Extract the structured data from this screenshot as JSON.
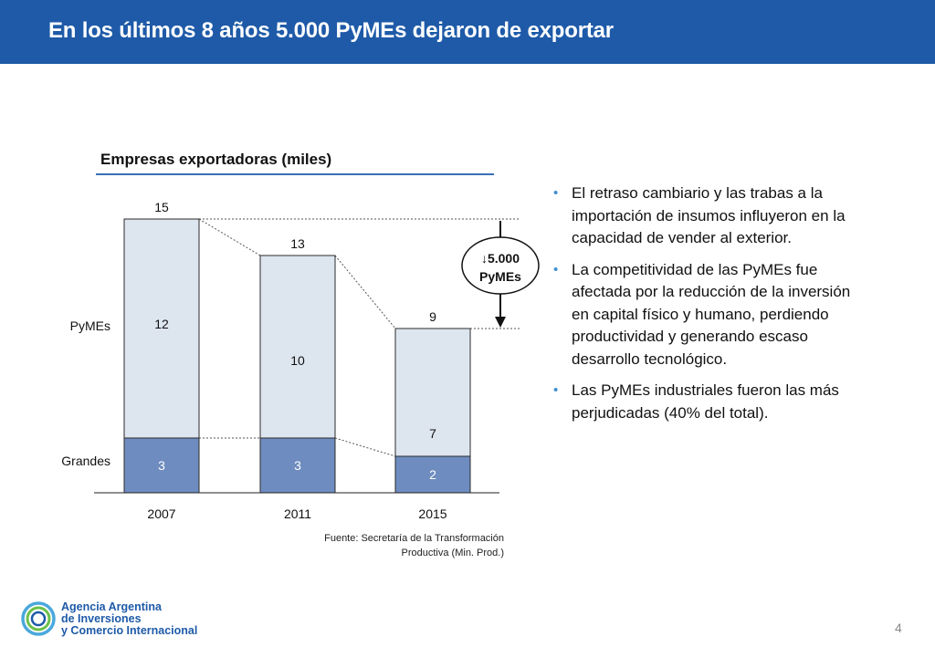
{
  "header": {
    "title": "En los últimos 8 años 5.000 PyMEs dejaron de exportar"
  },
  "chart_data": {
    "type": "bar",
    "stacked": true,
    "title": "Empresas exportadoras (miles)",
    "categories": [
      "2007",
      "2011",
      "2015"
    ],
    "series": [
      {
        "name": "Grandes",
        "values": [
          3,
          3,
          2
        ],
        "color": "#6e8cbf"
      },
      {
        "name": "PyMEs",
        "values": [
          12,
          10,
          7
        ],
        "color": "#dde5ef"
      }
    ],
    "totals": [
      15,
      13,
      9
    ],
    "ylim": [
      0,
      15
    ],
    "legend": "left",
    "annotation": {
      "arrow": "↓",
      "value": "5.000",
      "label": "PyMEs"
    }
  },
  "source": {
    "line1": "Fuente: Secretaría de la Transformación",
    "line2": "Productiva (Min. Prod.)"
  },
  "bullets": [
    "El retraso cambiario y las trabas a la importación de insumos influyeron en la capacidad de vender al exterior.",
    "La competitividad de las PyMEs fue afectada por la reducción de la inversión en capital físico y humano, perdiendo productividad y generando escaso desarrollo tecnológico.",
    "Las PyMEs industriales fueron las más perjudicadas (40% del total)."
  ],
  "logo": {
    "line1": "Agencia Argentina",
    "line2": "de Inversiones",
    "line3": "y Comercio Internacional"
  },
  "page_number": "4",
  "colors": {
    "header": "#1e5aa8",
    "bullet": "#3f8fd0",
    "bar_grandes": "#6e8cbf",
    "bar_pymes": "#dde5ef"
  }
}
